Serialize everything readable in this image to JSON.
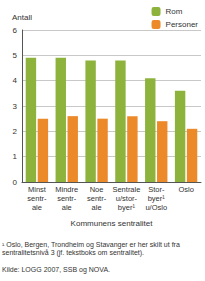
{
  "chart_data": {
    "type": "bar",
    "y_label": "Antall",
    "x_label": "Kommunens sentralitet",
    "categories": [
      "Minst\nsentr-\nale",
      "Mindre\nsentr-\nale",
      "Noe\nsentr-\nale",
      "Sentrale\nu/stor-\nbyer¹",
      "Stor-\nbyer¹\nu/Oslo",
      "Oslo"
    ],
    "series": [
      {
        "name": "Rom",
        "color": "#8db33d",
        "values": [
          4.9,
          4.9,
          4.8,
          4.8,
          4.1,
          3.6
        ]
      },
      {
        "name": "Personer",
        "color": "#ec8a2a",
        "values": [
          2.5,
          2.6,
          2.5,
          2.6,
          2.4,
          2.1
        ]
      }
    ],
    "ylim": [
      0,
      6
    ],
    "yticks": [
      0,
      1,
      2,
      3,
      4,
      5,
      6
    ],
    "grid": true,
    "legend": "upper right",
    "footnote": "¹ Oslo, Bergen, Trondheim og Stavanger er her skilt ut fra sentralitetsnivå 3 (jf. tekstboks om sentralitet).",
    "source": "Kilde: LOGG 2007, SSB og NOVA."
  }
}
